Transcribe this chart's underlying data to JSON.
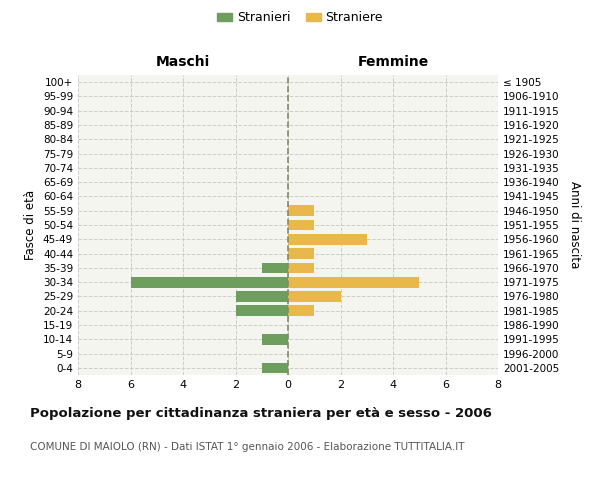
{
  "age_groups": [
    "0-4",
    "5-9",
    "10-14",
    "15-19",
    "20-24",
    "25-29",
    "30-34",
    "35-39",
    "40-44",
    "45-49",
    "50-54",
    "55-59",
    "60-64",
    "65-69",
    "70-74",
    "75-79",
    "80-84",
    "85-89",
    "90-94",
    "95-99",
    "100+"
  ],
  "birth_years": [
    "2001-2005",
    "1996-2000",
    "1991-1995",
    "1986-1990",
    "1981-1985",
    "1976-1980",
    "1971-1975",
    "1966-1970",
    "1961-1965",
    "1956-1960",
    "1951-1955",
    "1946-1950",
    "1941-1945",
    "1936-1940",
    "1931-1935",
    "1926-1930",
    "1921-1925",
    "1916-1920",
    "1911-1915",
    "1906-1910",
    "≤ 1905"
  ],
  "males": [
    1,
    0,
    1,
    0,
    2,
    2,
    6,
    1,
    0,
    0,
    0,
    0,
    0,
    0,
    0,
    0,
    0,
    0,
    0,
    0,
    0
  ],
  "females": [
    0,
    0,
    0,
    0,
    1,
    2,
    5,
    1,
    1,
    3,
    1,
    1,
    0,
    0,
    0,
    0,
    0,
    0,
    0,
    0,
    0
  ],
  "male_color": "#6e9e5e",
  "female_color": "#e8b84b",
  "grid_color": "#cccccc",
  "center_line_color": "#888866",
  "title": "Popolazione per cittadinanza straniera per età e sesso - 2006",
  "subtitle": "COMUNE DI MAIOLO (RN) - Dati ISTAT 1° gennaio 2006 - Elaborazione TUTTITALIA.IT",
  "xlabel_left": "Maschi",
  "xlabel_right": "Femmine",
  "ylabel_left": "Fasce di età",
  "ylabel_right": "Anni di nascita",
  "legend_male": "Stranieri",
  "legend_female": "Straniere",
  "xlim": 8,
  "background_color": "#ffffff",
  "plot_bg_color": "#f5f5f0"
}
